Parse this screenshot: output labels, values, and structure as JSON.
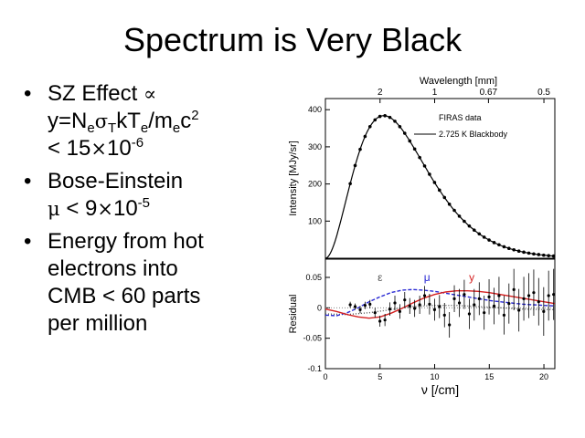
{
  "slide": {
    "title": "Spectrum is Very Black",
    "bullets": [
      {
        "marker": "•",
        "line1": {
          "a": "SZ Effect ",
          "sym": "∝"
        },
        "line2": {
          "a": "y=N",
          "sub1": "e",
          "sym": "σ",
          "sub2": "T",
          "b": "kT",
          "sub3": "e",
          "c": "/m",
          "sub4": "e",
          "d": "c",
          "sup": "2"
        },
        "line3": {
          "a": "< 15",
          "sym": "×",
          "b": "10",
          "sup": "-6"
        }
      },
      {
        "marker": "•",
        "line1": "Bose-Einstein",
        "line2": {
          "sym": "μ",
          "a": " < 9",
          "sym2": "×",
          "b": "10",
          "sup": "-5"
        }
      },
      {
        "marker": "•",
        "lines": [
          "Energy from hot",
          "electrons into",
          "CMB < 60 parts",
          "per million"
        ]
      }
    ]
  },
  "chart_data": [
    {
      "type": "scatter",
      "title": "",
      "top_axis_label": "Wavelength [mm]",
      "top_ticks": [
        "2",
        "1",
        "0.67",
        "0.5"
      ],
      "ylabel": "Intensity [MJy/sr]",
      "xlim": [
        0,
        21
      ],
      "ylim": [
        0,
        430
      ],
      "yticks": [
        "100",
        "200",
        "300",
        "400"
      ],
      "legend": [
        "FIRAS data",
        "2.725 K Blackbody"
      ],
      "legend_position": "top-right",
      "series": [
        {
          "name": "2.725 K Blackbody",
          "kind": "line",
          "T": 2.725
        },
        {
          "name": "FIRAS data",
          "kind": "points",
          "x": [
            2.27,
            2.72,
            3.18,
            3.63,
            4.08,
            4.54,
            4.99,
            5.45,
            5.9,
            6.36,
            6.81,
            7.26,
            7.72,
            8.17,
            8.63,
            9.08,
            9.53,
            9.99,
            10.44,
            10.9,
            11.35,
            11.8,
            12.26,
            12.71,
            13.17,
            13.62,
            14.08,
            14.53,
            14.98,
            15.44,
            15.89,
            16.35,
            16.8,
            17.25,
            17.71,
            18.16,
            18.62,
            19.07,
            19.52,
            19.98,
            20.43,
            20.89
          ]
        }
      ]
    },
    {
      "type": "line",
      "xlabel": "ν [/cm]",
      "ylabel": "Residual",
      "xlim": [
        0,
        21
      ],
      "ylim": [
        -0.1,
        0.08
      ],
      "xticks": [
        "0",
        "5",
        "10",
        "15",
        "20"
      ],
      "yticks": [
        "0.05",
        "0",
        "-0.05",
        "-0.1"
      ],
      "curve_labels": {
        "epsilon": "ε",
        "mu": "μ",
        "y": "y"
      },
      "colors": {
        "epsilon": "#555555",
        "mu": "#2a2ad4",
        "y": "#d42020",
        "data": "#000000"
      },
      "series": [
        {
          "name": "ε",
          "x": [
            0,
            2,
            4,
            6,
            8,
            10,
            12,
            14,
            16,
            18,
            20,
            21
          ],
          "values": [
            -0.01,
            -0.011,
            -0.008,
            -0.003,
            0.002,
            0.004,
            0.004,
            0.002,
            0.0,
            -0.002,
            -0.003,
            -0.003
          ]
        },
        {
          "name": "μ",
          "x": [
            0,
            1,
            2,
            3,
            4,
            5,
            6,
            7,
            8,
            9,
            10,
            11,
            12,
            13,
            14,
            15,
            16,
            17,
            18,
            19,
            20,
            21
          ],
          "values": [
            -0.012,
            -0.013,
            -0.008,
            0.0,
            0.01,
            0.018,
            0.025,
            0.029,
            0.03,
            0.029,
            0.027,
            0.024,
            0.021,
            0.018,
            0.015,
            0.012,
            0.01,
            0.008,
            0.006,
            0.005,
            0.004,
            0.003
          ]
        },
        {
          "name": "y",
          "x": [
            0,
            1,
            2,
            3,
            4,
            5,
            6,
            7,
            8,
            9,
            10,
            11,
            12,
            13,
            14,
            15,
            16,
            17,
            18,
            19,
            20,
            21
          ],
          "values": [
            -0.002,
            -0.006,
            -0.011,
            -0.015,
            -0.017,
            -0.015,
            -0.009,
            -0.001,
            0.008,
            0.016,
            0.022,
            0.026,
            0.028,
            0.028,
            0.027,
            0.025,
            0.022,
            0.019,
            0.016,
            0.013,
            0.01,
            0.007
          ]
        },
        {
          "name": "FIRAS residuals",
          "x": [
            2.27,
            2.72,
            3.18,
            3.63,
            4.08,
            4.54,
            4.99,
            5.45,
            5.9,
            6.36,
            6.81,
            7.26,
            7.72,
            8.17,
            8.63,
            9.08,
            9.53,
            9.99,
            10.44,
            10.9,
            11.35,
            11.8,
            12.26,
            12.71,
            13.17,
            13.62,
            14.08,
            14.53,
            14.98,
            15.44,
            15.89,
            16.35,
            16.8,
            17.25,
            17.71,
            18.16,
            18.62,
            19.07,
            19.52,
            19.98,
            20.43,
            20.89
          ],
          "values": [
            0.005,
            0.002,
            -0.003,
            0.004,
            0.006,
            -0.008,
            -0.022,
            -0.02,
            -0.002,
            0.008,
            -0.006,
            0.013,
            0.003,
            -0.001,
            0.005,
            0.02,
            0.006,
            -0.003,
            0.002,
            -0.012,
            -0.028,
            0.015,
            0.008,
            0.022,
            -0.01,
            0.005,
            0.015,
            -0.008,
            0.018,
            0.003,
            0.02,
            -0.012,
            0.007,
            0.03,
            -0.004,
            0.015,
            0.02,
            0.025,
            0.01,
            -0.006,
            0.02,
            0.022
          ],
          "errors": [
            0.005,
            0.005,
            0.006,
            0.006,
            0.007,
            0.008,
            0.009,
            0.01,
            0.011,
            0.012,
            0.012,
            0.013,
            0.013,
            0.014,
            0.015,
            0.016,
            0.017,
            0.018,
            0.019,
            0.02,
            0.021,
            0.022,
            0.023,
            0.024,
            0.025,
            0.026,
            0.027,
            0.028,
            0.029,
            0.03,
            0.031,
            0.032,
            0.033,
            0.034,
            0.035,
            0.036,
            0.037,
            0.038,
            0.039,
            0.04,
            0.041,
            0.042
          ]
        }
      ]
    }
  ]
}
